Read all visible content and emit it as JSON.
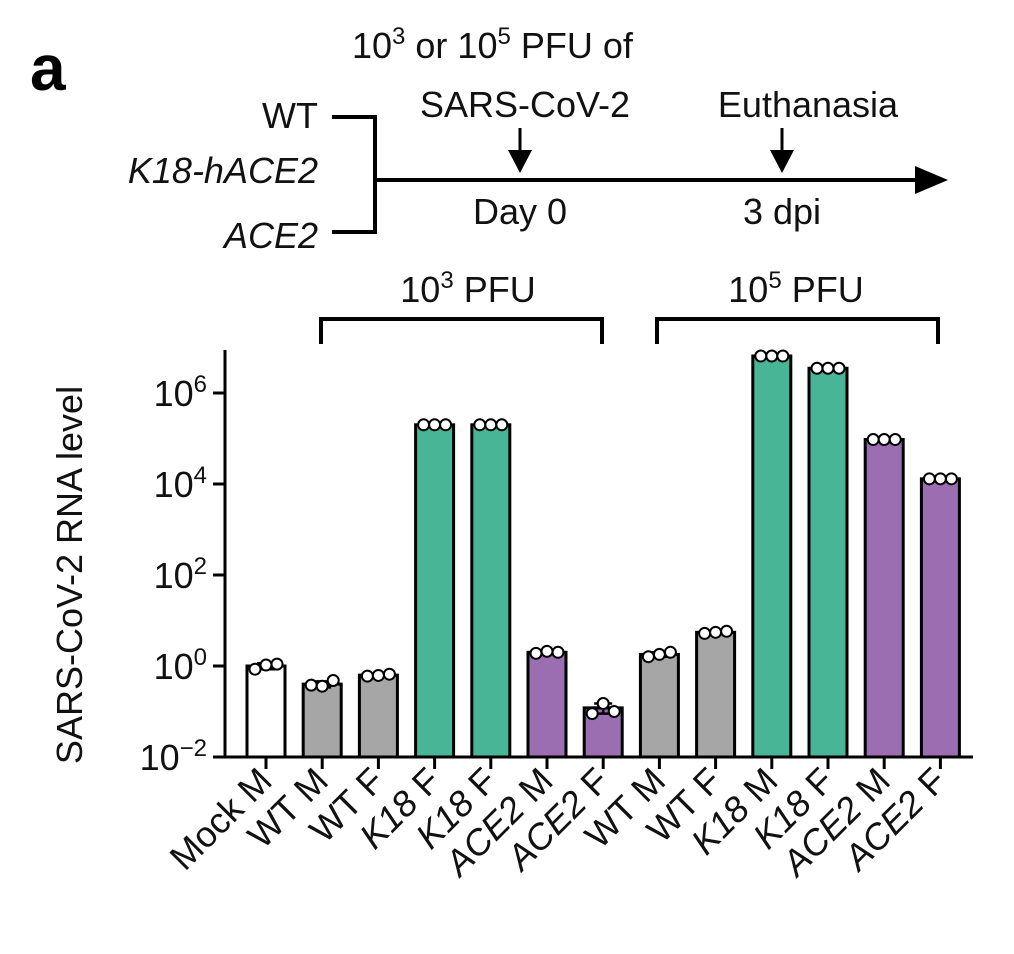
{
  "panel_label": "a",
  "schematic": {
    "groups": [
      "WT",
      "K18-hACE2",
      "ACE2"
    ],
    "infection_line1": "10",
    "infection_sup1": "3",
    "infection_mid": " or 10",
    "infection_sup2": "5",
    "infection_end": " PFU of",
    "infection_line2": "SARS-CoV-2",
    "day0": "Day 0",
    "euthanasia": "Euthanasia",
    "dpi": "3 dpi"
  },
  "dose_brackets": [
    {
      "base": "10",
      "exp": "3",
      "unit": " PFU"
    },
    {
      "base": "10",
      "exp": "5",
      "unit": " PFU"
    }
  ],
  "colors": {
    "mock": "#ffffff",
    "wt": "#a6a6a6",
    "k18": "#49b597",
    "ace2": "#9a6eb0"
  },
  "chart_data": {
    "type": "bar",
    "ylabel": "SARS-CoV-2 RNA level",
    "yscale": "log",
    "ylim": [
      0.01,
      100000000
    ],
    "yticks": [
      {
        "base": "10",
        "exp": "6",
        "value": 1000000
      },
      {
        "base": "10",
        "exp": "4",
        "value": 10000
      },
      {
        "base": "10",
        "exp": "2",
        "value": 100
      },
      {
        "base": "10",
        "exp": "0",
        "value": 1
      },
      {
        "base": "10",
        "exp": "−2",
        "value": 0.01
      }
    ],
    "categories": [
      {
        "pre": "Mock M",
        "it": "",
        "post": ""
      },
      {
        "pre": "WT M",
        "it": "",
        "post": ""
      },
      {
        "pre": "WT F",
        "it": "",
        "post": ""
      },
      {
        "pre": "",
        "it": "K18",
        "post": " F"
      },
      {
        "pre": "",
        "it": "K18",
        "post": " F"
      },
      {
        "pre": "",
        "it": "ACE2",
        "post": " M"
      },
      {
        "pre": "",
        "it": "ACE2",
        "post": " F"
      },
      {
        "pre": "WT M",
        "it": "",
        "post": ""
      },
      {
        "pre": "WT F",
        "it": "",
        "post": ""
      },
      {
        "pre": "",
        "it": "K18",
        "post": " M"
      },
      {
        "pre": "",
        "it": "K18",
        "post": " F"
      },
      {
        "pre": "",
        "it": "ACE2",
        "post": " M"
      },
      {
        "pre": "",
        "it": "ACE2",
        "post": " F"
      }
    ],
    "values": [
      1.0,
      0.4,
      0.63,
      200000,
      200000,
      2.0,
      0.12,
      1.8,
      5.5,
      6500000,
      3500000,
      95000,
      13000
    ],
    "groups": [
      "mock",
      "wt",
      "wt",
      "k18",
      "k18",
      "ace2",
      "ace2",
      "wt",
      "wt",
      "k18",
      "k18",
      "ace2",
      "ace2"
    ],
    "points": [
      [
        0.85,
        1.05,
        1.1
      ],
      [
        0.38,
        0.36,
        0.48
      ],
      [
        0.6,
        0.62,
        0.66
      ],
      [
        200000,
        200000,
        200000
      ],
      [
        200000,
        200000,
        200000
      ],
      [
        1.9,
        2.1,
        2.0
      ],
      [
        0.09,
        0.15,
        0.1
      ],
      [
        1.6,
        1.8,
        2.0
      ],
      [
        5.2,
        5.5,
        5.8
      ],
      [
        6500000,
        6500000,
        6500000
      ],
      [
        3500000,
        3500000,
        3500000
      ],
      [
        95000,
        95000,
        95000
      ],
      [
        13000,
        13000,
        13000
      ]
    ],
    "errors": [
      0.15,
      0.06,
      0.04,
      0,
      0,
      0.15,
      0.03,
      0.2,
      0.3,
      0,
      0,
      0,
      0
    ]
  }
}
